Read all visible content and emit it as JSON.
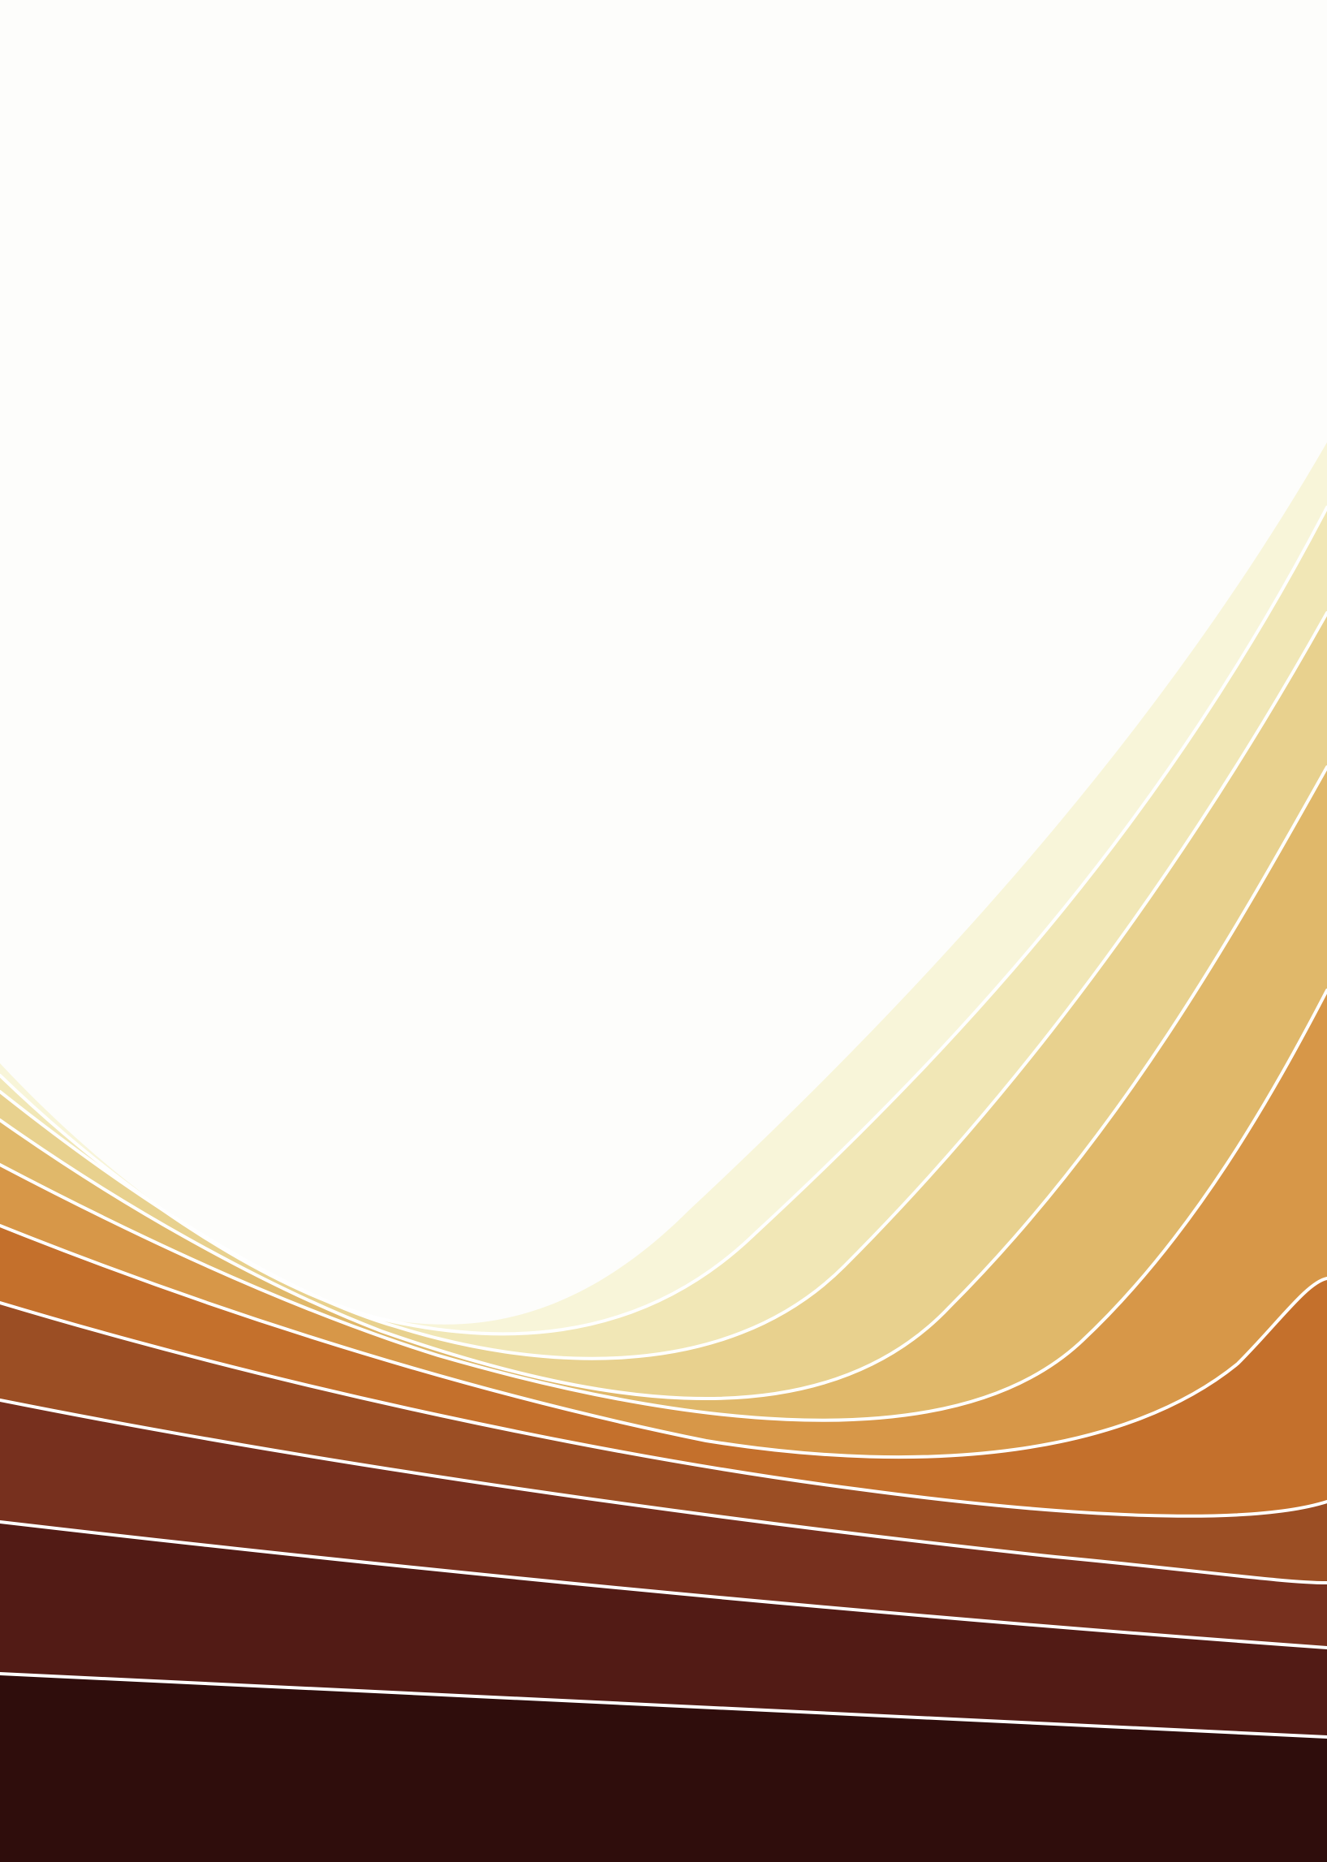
{
  "background": {
    "base_color": "#fdfdfb",
    "divider_color": "#ffffff",
    "bands": [
      {
        "name": "cream",
        "color": "#f8f5d9"
      },
      {
        "name": "pale-straw",
        "color": "#f1e7b6"
      },
      {
        "name": "straw",
        "color": "#e8d18e"
      },
      {
        "name": "light-ochre",
        "color": "#e0b86a"
      },
      {
        "name": "ochre",
        "color": "#d79748"
      },
      {
        "name": "burnt-orange",
        "color": "#c4702c"
      },
      {
        "name": "rust",
        "color": "#9b4e24"
      },
      {
        "name": "brick",
        "color": "#77301e"
      },
      {
        "name": "dark-maroon",
        "color": "#521b15"
      },
      {
        "name": "near-black-maroon",
        "color": "#2f0d0c"
      }
    ]
  }
}
